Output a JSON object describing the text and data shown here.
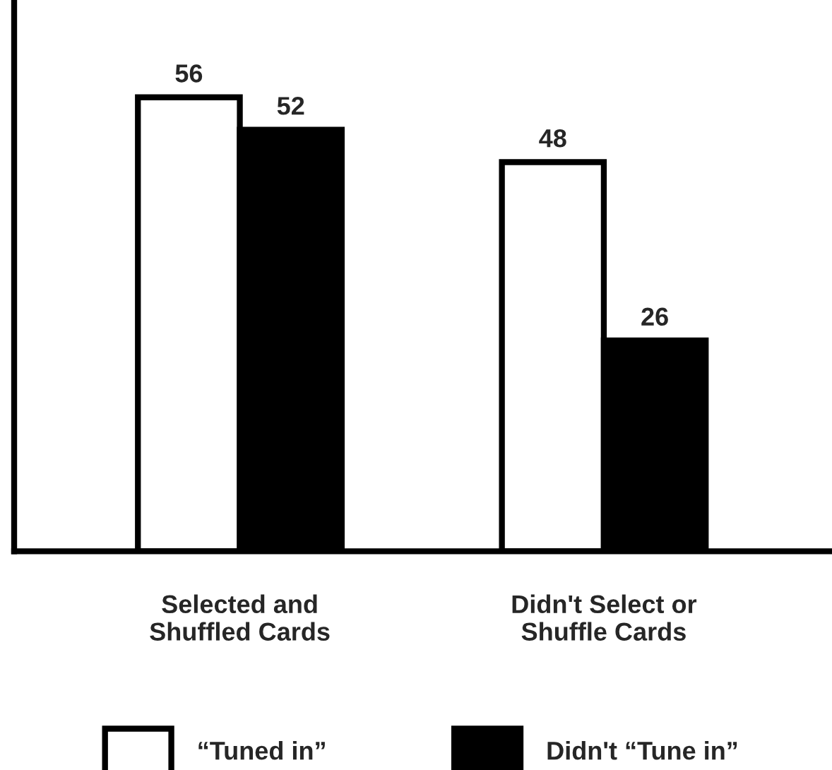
{
  "chart_data": {
    "type": "bar",
    "categories": [
      "Selected and\nShuffled Cards",
      "Didn't Select or\nShuffle Cards"
    ],
    "series": [
      {
        "name": "“Tuned in”",
        "color": "#ffffff",
        "values": [
          56,
          48
        ]
      },
      {
        "name": "Didn't “Tune in”",
        "color": "#000000",
        "values": [
          52,
          26
        ]
      }
    ],
    "ylim": [
      0,
      68
    ],
    "tick_labels": "x",
    "data_labels": true,
    "legend": "bottom",
    "grid": false
  }
}
